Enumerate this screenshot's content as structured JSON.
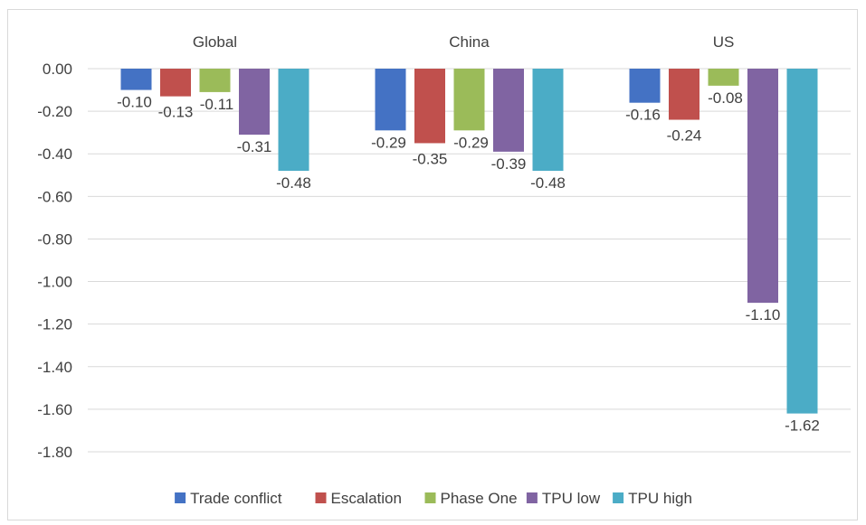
{
  "chart_data": {
    "type": "bar",
    "title": "",
    "xlabel": "",
    "ylabel": "",
    "categories": [
      "Global",
      "China",
      "US"
    ],
    "series": [
      {
        "name": "Trade conflict",
        "color": "#4472C4",
        "values": [
          -0.1,
          -0.29,
          -0.16
        ]
      },
      {
        "name": "Escalation",
        "color": "#C0504D",
        "values": [
          -0.13,
          -0.35,
          -0.24
        ]
      },
      {
        "name": "Phase One",
        "color": "#9BBB59",
        "values": [
          -0.11,
          -0.29,
          -0.08
        ]
      },
      {
        "name": "TPU low",
        "color": "#8064A2",
        "values": [
          -0.31,
          -0.39,
          -1.1
        ]
      },
      {
        "name": "TPU high",
        "color": "#4BACC6",
        "values": [
          -0.48,
          -0.48,
          -1.62
        ]
      }
    ],
    "data_labels": [
      [
        "-0.10",
        "-0.29",
        "-0.16"
      ],
      [
        "-0.13",
        "-0.35",
        "-0.24"
      ],
      [
        "-0.11",
        "-0.29",
        "-0.08"
      ],
      [
        "-0.31",
        "-0.39",
        "-1.10"
      ],
      [
        "-0.48",
        "-0.48",
        "-1.62"
      ]
    ],
    "ylim": [
      -1.8,
      0
    ],
    "yticks": [
      0,
      -0.2,
      -0.4,
      -0.6,
      -0.8,
      -1.0,
      -1.2,
      -1.4,
      -1.6,
      -1.8
    ],
    "ytick_labels": [
      "0.00",
      "-0.20",
      "-0.40",
      "-0.60",
      "-0.80",
      "-1.00",
      "-1.20",
      "-1.40",
      "-1.60",
      "-1.80"
    ],
    "category_labels_position": "top",
    "grid": true,
    "legend": "bottom"
  }
}
